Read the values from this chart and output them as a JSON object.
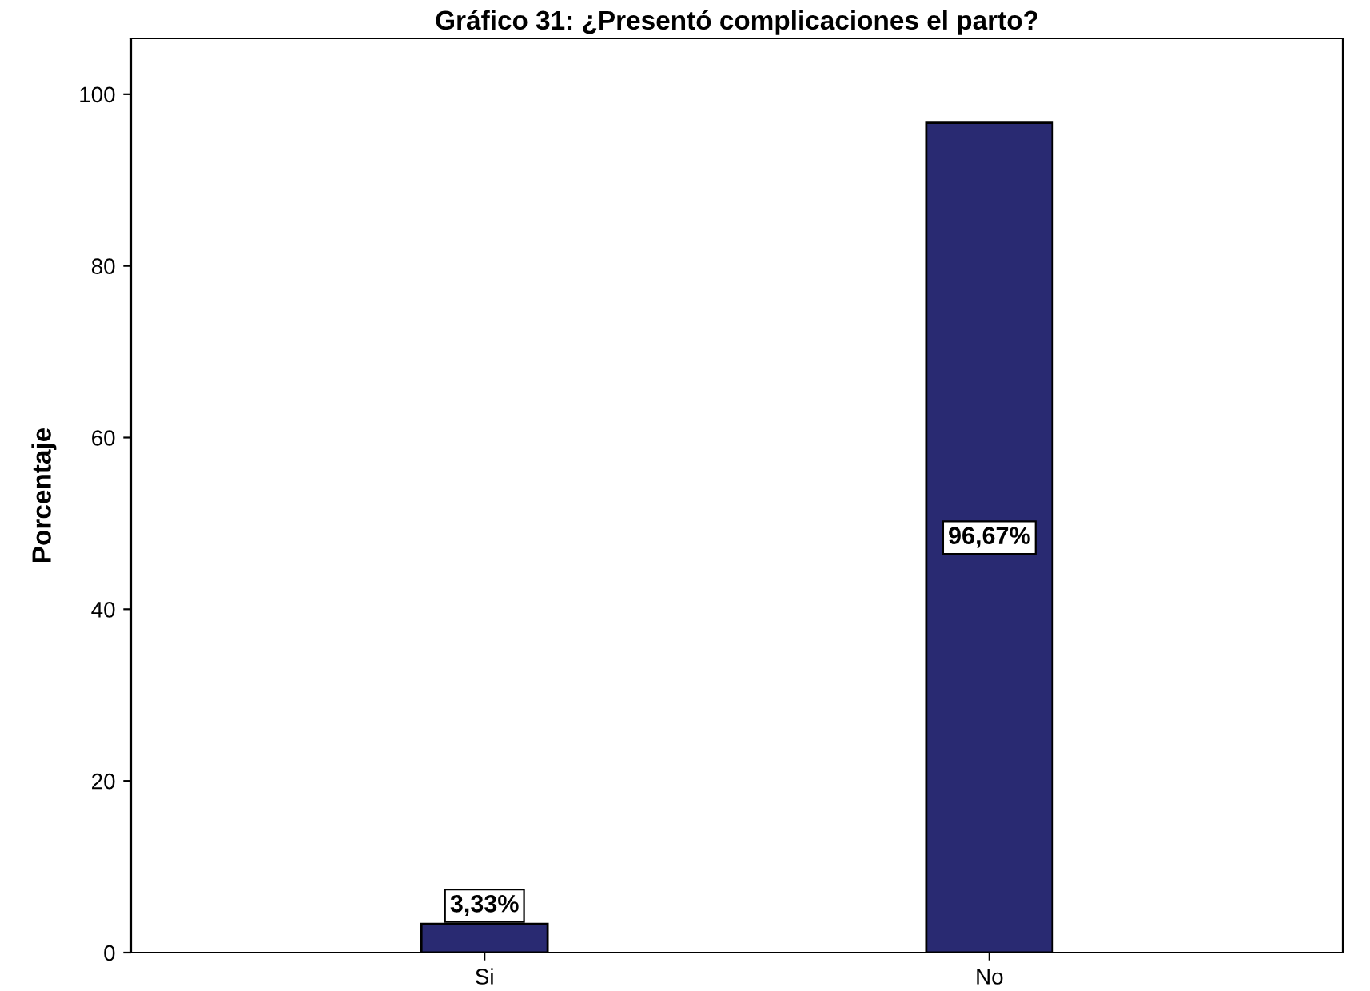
{
  "chart_data": {
    "type": "bar",
    "title": "Gráfico 31: ¿Presentó complicaciones el parto?",
    "ylabel": "Porcentaje",
    "categories": [
      "Si",
      "No"
    ],
    "values": [
      3.33,
      96.67
    ],
    "color": "#292a72",
    "value_labels": [
      "3,33%",
      "96,67%"
    ],
    "ylim": [
      0,
      106.5
    ],
    "yticks": [
      0,
      20,
      40,
      60,
      80,
      100
    ],
    "grid": false
  }
}
